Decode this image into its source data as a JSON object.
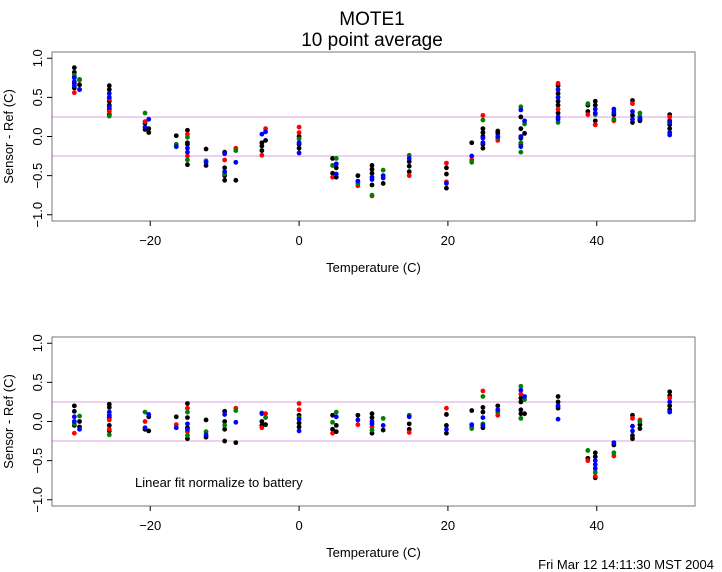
{
  "title": "MOTE1",
  "subtitle": "10 point average",
  "timestamp": "Fri Mar 12 14:11:30 MST 2004",
  "colors": {
    "k": "#000000",
    "r": "#ff0000",
    "g": "#008000",
    "b": "#0000ff",
    "ref": "#e0a0e0"
  },
  "chart_data": [
    {
      "type": "scatter",
      "title": "MOTE1 10 point average",
      "xlabel": "Temperature (C)",
      "ylabel": "Sensor - Ref (C)",
      "xlim": [
        -33.2,
        53.2
      ],
      "ylim": [
        -1.08,
        1.08
      ],
      "xticks": [
        -20,
        0,
        20,
        40
      ],
      "xtick_labels": [
        "−20",
        "0",
        "20",
        "40"
      ],
      "yticks": [
        -1.0,
        -0.5,
        0.0,
        0.5,
        1.0
      ],
      "ytick_labels": [
        "−1.0",
        "−0.5",
        "0.0",
        "0.5",
        "1.0"
      ],
      "ref_lines": [
        0.25,
        -0.25
      ],
      "annotation": "",
      "clusters": [
        {
          "x": -30.2,
          "k": [
            0.88,
            0.82,
            0.76,
            0.68,
            0.62
          ],
          "b": [
            0.75,
            0.7,
            0.65
          ],
          "r": [
            0.56
          ],
          "g": [
            0.78
          ]
        },
        {
          "x": -29.5,
          "g": [
            0.73
          ],
          "r": [
            0.72
          ],
          "k": [
            0.66,
            0.6
          ],
          "b": [
            0.6
          ]
        },
        {
          "x": -25.5,
          "k": [
            0.65,
            0.6,
            0.45,
            0.4,
            0.35,
            0.28
          ],
          "b": [
            0.55,
            0.5,
            0.38
          ],
          "r": [
            0.32,
            0.48
          ],
          "g": [
            0.26
          ]
        },
        {
          "x": -20.7,
          "g": [
            0.3
          ],
          "r": [
            0.19
          ],
          "k": [
            0.17,
            0.09
          ],
          "b": [
            0.12
          ]
        },
        {
          "x": -20.2,
          "b": [
            0.22
          ],
          "k": [
            0.1,
            0.05
          ]
        },
        {
          "x": -16.5,
          "k": [
            0.01
          ],
          "g": [
            -0.1
          ],
          "b": [
            -0.13
          ]
        },
        {
          "x": -15.0,
          "k": [
            0.08,
            -0.08,
            -0.1,
            -0.36
          ],
          "r": [
            0.03,
            -0.25
          ],
          "g": [
            -0.01,
            -0.3
          ],
          "b": [
            -0.15,
            -0.2
          ]
        },
        {
          "x": -12.5,
          "k": [
            -0.16,
            -0.37
          ],
          "b": [
            -0.33
          ],
          "g": [
            -0.31
          ]
        },
        {
          "x": -10.0,
          "k": [
            -0.2,
            -0.4,
            -0.5,
            -0.56
          ],
          "r": [
            -0.3
          ],
          "b": [
            -0.22,
            -0.45
          ],
          "g": [
            -0.48
          ]
        },
        {
          "x": -8.5,
          "r": [
            -0.15
          ],
          "g": [
            -0.18
          ],
          "b": [
            -0.33
          ],
          "k": [
            -0.56
          ]
        },
        {
          "x": -5.0,
          "b": [
            0.03
          ],
          "k": [
            -0.08,
            -0.12,
            -0.18
          ],
          "r": [
            -0.24
          ]
        },
        {
          "x": -4.5,
          "r": [
            0.1
          ],
          "b": [
            0.06
          ],
          "k": [
            -0.05
          ]
        },
        {
          "x": 0.0,
          "r": [
            0.12,
            0.05
          ],
          "k": [
            0.0,
            -0.1,
            -0.15
          ],
          "g": [
            -0.03
          ],
          "b": [
            -0.08,
            -0.21
          ]
        },
        {
          "x": 4.5,
          "k": [
            -0.28,
            -0.47
          ],
          "g": [
            -0.37
          ],
          "r": [
            -0.52
          ]
        },
        {
          "x": 5.0,
          "g": [
            -0.28
          ],
          "b": [
            -0.35,
            -0.48
          ],
          "k": [
            -0.52,
            -0.4
          ]
        },
        {
          "x": 7.9,
          "k": [
            -0.5
          ],
          "b": [
            -0.57
          ],
          "r": [
            -0.63
          ],
          "g": [
            -0.6
          ]
        },
        {
          "x": 9.8,
          "k": [
            -0.37,
            -0.42,
            -0.47,
            -0.62
          ],
          "b": [
            -0.52,
            -0.55
          ],
          "g": [
            -0.75
          ],
          "r": [
            -0.76
          ]
        },
        {
          "x": 11.3,
          "g": [
            -0.43
          ],
          "b": [
            -0.5,
            -0.53
          ],
          "k": [
            -0.6
          ]
        },
        {
          "x": 14.8,
          "g": [
            -0.24
          ],
          "b": [
            -0.28
          ],
          "k": [
            -0.32,
            -0.38,
            -0.45
          ],
          "r": [
            -0.5
          ]
        },
        {
          "x": 19.8,
          "r": [
            -0.34,
            -0.58
          ],
          "k": [
            -0.4,
            -0.48,
            -0.66
          ],
          "b": [
            -0.6
          ]
        },
        {
          "x": 23.2,
          "k": [
            -0.08
          ],
          "b": [
            -0.25
          ],
          "r": [
            -0.3
          ],
          "g": [
            -0.33
          ]
        },
        {
          "x": 24.7,
          "r": [
            0.27
          ],
          "g": [
            0.21
          ],
          "k": [
            0.1,
            0.05,
            0.0,
            -0.1,
            -0.15
          ],
          "b": [
            -0.02,
            -0.08
          ]
        },
        {
          "x": 26.7,
          "k": [
            0.07,
            0.04
          ],
          "b": [
            0.0
          ],
          "g": [
            -0.02
          ],
          "r": [
            -0.05
          ]
        },
        {
          "x": 29.8,
          "g": [
            0.38,
            -0.08,
            -0.2
          ],
          "b": [
            0.34,
            0.0,
            -0.13
          ],
          "k": [
            0.25,
            0.1,
            -0.02,
            -0.1
          ]
        },
        {
          "x": 30.3,
          "b": [
            0.2
          ],
          "g": [
            0.16
          ],
          "k": [
            0.04
          ]
        },
        {
          "x": 34.8,
          "r": [
            0.68,
            0.35
          ],
          "k": [
            0.65,
            0.55,
            0.45,
            0.4,
            0.3
          ],
          "b": [
            0.6,
            0.5,
            0.25,
            0.22
          ],
          "g": [
            0.18
          ]
        },
        {
          "x": 38.8,
          "g": [
            0.42
          ],
          "k": [
            0.4,
            0.32
          ],
          "r": [
            0.28
          ]
        },
        {
          "x": 39.8,
          "k": [
            0.45,
            0.4,
            0.2,
            0.15
          ],
          "b": [
            0.35,
            0.3
          ],
          "g": [
            0.28
          ],
          "r": [
            0.15
          ]
        },
        {
          "x": 42.3,
          "b": [
            0.35,
            0.31
          ],
          "k": [
            0.28
          ],
          "g": [
            0.22
          ],
          "r": [
            0.2
          ]
        },
        {
          "x": 44.8,
          "k": [
            0.46,
            0.27,
            0.18
          ],
          "r": [
            0.42
          ],
          "b": [
            0.32,
            0.22
          ]
        },
        {
          "x": 45.8,
          "g": [
            0.3,
            0.26
          ],
          "k": [
            0.22,
            0.2
          ],
          "b": [
            0.23
          ]
        },
        {
          "x": 49.8,
          "k": [
            0.28,
            0.2,
            0.15,
            0.1
          ],
          "r": [
            0.25
          ],
          "b": [
            0.18,
            0.05,
            0.02
          ]
        }
      ]
    },
    {
      "type": "scatter",
      "title": "",
      "xlabel": "Temperature (C)",
      "ylabel": "Sensor - Ref (C)",
      "xlim": [
        -33.2,
        53.2
      ],
      "ylim": [
        -1.08,
        1.08
      ],
      "xticks": [
        -20,
        0,
        20,
        40
      ],
      "xtick_labels": [
        "−20",
        "0",
        "20",
        "40"
      ],
      "yticks": [
        -1.0,
        -0.5,
        0.0,
        0.5,
        1.0
      ],
      "ytick_labels": [
        "−1.0",
        "−0.5",
        "0.0",
        "0.5",
        "1.0"
      ],
      "ref_lines": [
        0.25,
        -0.25
      ],
      "annotation": "Linear fit normalize to battery",
      "clusters": [
        {
          "x": -30.2,
          "k": [
            0.2,
            0.13,
            -0.05
          ],
          "b": [
            0.06,
            0.0
          ],
          "r": [
            -0.15
          ],
          "g": [
            -0.03
          ]
        },
        {
          "x": -29.5,
          "g": [
            0.07
          ],
          "k": [
            0.0,
            -0.07
          ],
          "b": [
            -0.1
          ]
        },
        {
          "x": -25.5,
          "k": [
            0.22,
            0.18,
            0.05,
            -0.05,
            -0.12
          ],
          "b": [
            0.12,
            0.08
          ],
          "r": [
            0.02,
            -0.1
          ],
          "g": [
            -0.17
          ]
        },
        {
          "x": -20.7,
          "g": [
            0.12
          ],
          "r": [
            0.0
          ],
          "b": [
            -0.08
          ],
          "k": [
            -0.1
          ]
        },
        {
          "x": -20.2,
          "b": [
            0.09
          ],
          "k": [
            0.06,
            -0.12
          ]
        },
        {
          "x": -16.5,
          "k": [
            0.06
          ],
          "r": [
            -0.04
          ],
          "b": [
            -0.08
          ]
        },
        {
          "x": -15.0,
          "k": [
            0.23,
            0.05,
            -0.08,
            -0.22
          ],
          "r": [
            0.17,
            -0.13
          ],
          "g": [
            0.12,
            -0.18
          ],
          "b": [
            -0.03,
            -0.1
          ]
        },
        {
          "x": -12.5,
          "k": [
            0.02,
            -0.2
          ],
          "g": [
            -0.13
          ],
          "b": [
            -0.17
          ]
        },
        {
          "x": -10.0,
          "k": [
            0.13,
            0.0,
            -0.1,
            -0.25
          ],
          "b": [
            0.09
          ],
          "g": [
            -0.05
          ]
        },
        {
          "x": -8.5,
          "r": [
            0.17
          ],
          "g": [
            0.14
          ],
          "b": [
            -0.01
          ],
          "k": [
            -0.27
          ]
        },
        {
          "x": -5.0,
          "b": [
            0.1
          ],
          "g": [
            0.11
          ],
          "k": [
            0.0,
            -0.05
          ],
          "r": [
            -0.08
          ]
        },
        {
          "x": -4.5,
          "r": [
            0.1
          ],
          "g": [
            0.05
          ],
          "k": [
            -0.04
          ]
        },
        {
          "x": 0.0,
          "r": [
            0.23,
            0.15
          ],
          "k": [
            0.08,
            -0.02,
            -0.07
          ],
          "b": [
            0.03,
            -0.12
          ],
          "g": [
            0.05
          ]
        },
        {
          "x": 4.5,
          "k": [
            0.08,
            -0.1
          ],
          "g": [
            -0.01
          ],
          "r": [
            -0.15
          ]
        },
        {
          "x": 5.0,
          "g": [
            0.12
          ],
          "b": [
            0.06
          ],
          "k": [
            -0.05,
            -0.13
          ]
        },
        {
          "x": 7.9,
          "k": [
            0.08
          ],
          "b": [
            0.02
          ],
          "r": [
            -0.04
          ]
        },
        {
          "x": 9.8,
          "k": [
            0.1,
            0.05,
            -0.15
          ],
          "b": [
            -0.03,
            0.0
          ],
          "g": [
            -0.11
          ],
          "r": [
            -0.07
          ]
        },
        {
          "x": 11.3,
          "g": [
            0.04
          ],
          "b": [
            -0.05
          ],
          "k": [
            -0.11
          ]
        },
        {
          "x": 14.8,
          "g": [
            0.08
          ],
          "b": [
            0.06
          ],
          "k": [
            -0.03,
            -0.1
          ],
          "r": [
            -0.14
          ]
        },
        {
          "x": 19.8,
          "r": [
            0.17
          ],
          "k": [
            0.09,
            -0.05,
            -0.15
          ],
          "b": [
            -0.1
          ]
        },
        {
          "x": 23.2,
          "k": [
            0.14
          ],
          "b": [
            -0.04
          ],
          "r": [
            -0.07
          ],
          "g": [
            -0.09
          ]
        },
        {
          "x": 24.7,
          "r": [
            0.39
          ],
          "g": [
            0.32,
            -0.03
          ],
          "k": [
            0.18,
            0.12,
            -0.08
          ],
          "b": [
            0.05,
            -0.05
          ]
        },
        {
          "x": 26.7,
          "k": [
            0.2
          ],
          "b": [
            0.15
          ],
          "g": [
            0.12
          ],
          "r": [
            0.08
          ]
        },
        {
          "x": 29.8,
          "g": [
            0.45,
            0.04
          ],
          "r": [
            0.35
          ],
          "b": [
            0.4
          ],
          "k": [
            0.3,
            0.25,
            0.15,
            0.1
          ]
        },
        {
          "x": 30.3,
          "b": [
            0.32
          ],
          "g": [
            0.28
          ],
          "k": [
            0.1
          ]
        },
        {
          "x": 34.8,
          "k": [
            0.32,
            0.25,
            0.17
          ],
          "b": [
            0.2,
            0.03
          ]
        },
        {
          "x": 38.8,
          "g": [
            -0.37
          ],
          "k": [
            -0.47
          ],
          "r": [
            -0.5
          ]
        },
        {
          "x": 39.8,
          "k": [
            -0.4,
            -0.45,
            -0.72
          ],
          "b": [
            -0.5,
            -0.55,
            -0.6
          ],
          "g": [
            -0.65
          ],
          "r": [
            -0.7
          ]
        },
        {
          "x": 42.3,
          "b": [
            -0.27
          ],
          "k": [
            -0.3
          ],
          "g": [
            -0.4
          ],
          "r": [
            -0.44
          ]
        },
        {
          "x": 44.8,
          "k": [
            0.08,
            -0.22,
            -0.18
          ],
          "r": [
            0.04
          ],
          "b": [
            -0.06,
            -0.12
          ]
        },
        {
          "x": 45.8,
          "r": [
            0.02
          ],
          "g": [
            0.0
          ],
          "k": [
            -0.04,
            -0.09
          ]
        },
        {
          "x": 49.8,
          "k": [
            0.38,
            0.33,
            0.2,
            0.15
          ],
          "r": [
            0.3
          ],
          "b": [
            0.25,
            0.12
          ]
        }
      ]
    }
  ]
}
